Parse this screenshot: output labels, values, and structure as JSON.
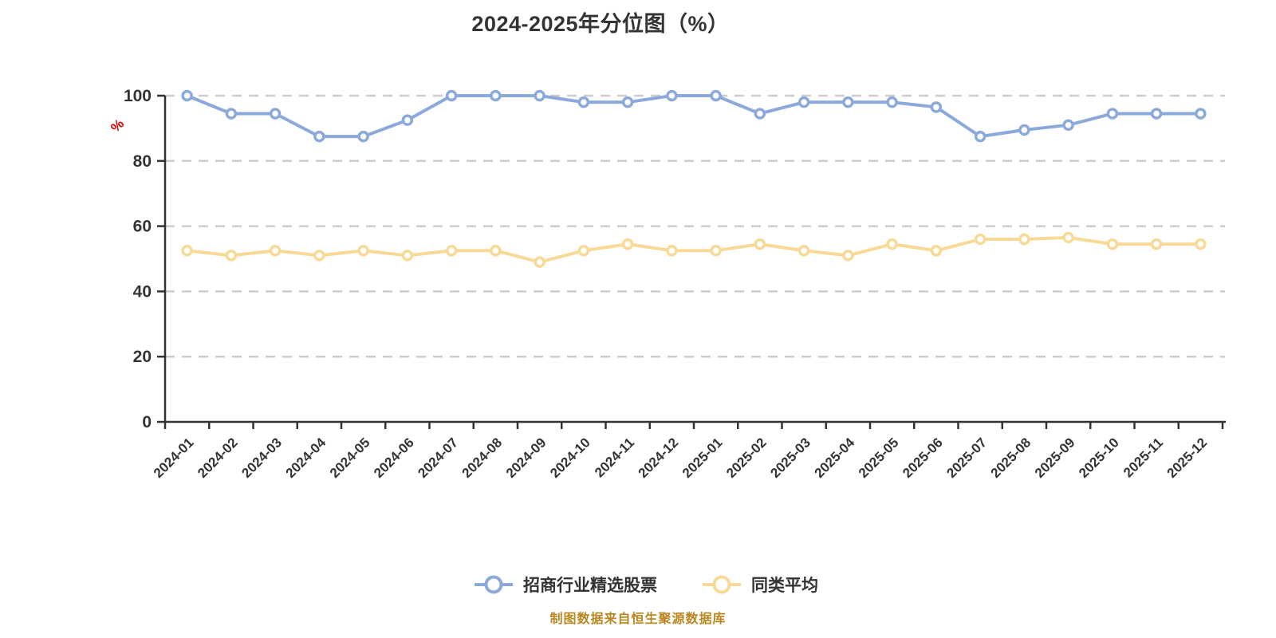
{
  "title": "2024-2025年分位图（%）",
  "caption": "制图数据来自恒生聚源数据库",
  "y_axis": {
    "unit": "%",
    "ticks": [
      0,
      20,
      40,
      60,
      80,
      100
    ]
  },
  "legend": [
    {
      "label": "招商行业精选股票",
      "color": "#8CA9DB"
    },
    {
      "label": "同类平均",
      "color": "#F8DA96"
    }
  ],
  "colors": {
    "axis": "#333333",
    "tick_label": "#333333",
    "grid": "#cccccc",
    "unit_label_red": "#dd0000",
    "caption_orange": "#b9861f",
    "series_fund": "#8CA9DB",
    "series_average": "#F8DA96",
    "marker_fill": "#ffffff",
    "background": "#ffffff"
  },
  "chart_data": {
    "type": "line",
    "title": "2024-2025年分位图（%）",
    "xlabel": "",
    "ylabel": "%",
    "ylim": [
      0,
      100
    ],
    "yticks": [
      0,
      20,
      40,
      60,
      80,
      100
    ],
    "grid": "horizontal-dashed",
    "legend_position": "bottom",
    "categories": [
      "2024-01",
      "2024-02",
      "2024-03",
      "2024-04",
      "2024-05",
      "2024-06",
      "2024-07",
      "2024-08",
      "2024-09",
      "2024-10",
      "2024-11",
      "2024-12",
      "2025-01",
      "2025-02",
      "2025-03",
      "2025-04",
      "2025-05",
      "2025-06",
      "2025-07",
      "2025-08",
      "2025-09",
      "2025-10",
      "2025-11",
      "2025-12"
    ],
    "series": [
      {
        "name": "招商行业精选股票",
        "color": "#8CA9DB",
        "values": [
          100,
          94.5,
          94.5,
          87.5,
          87.5,
          92.5,
          100,
          100,
          100,
          98,
          98,
          100,
          100,
          94.5,
          98,
          98,
          98,
          96.5,
          87.5,
          89.5,
          91,
          94.5,
          94.5,
          94.5
        ]
      },
      {
        "name": "同类平均",
        "color": "#F8DA96",
        "values": [
          52.5,
          51,
          52.5,
          51,
          52.5,
          51,
          52.5,
          52.5,
          49,
          52.5,
          54.5,
          52.5,
          52.5,
          54.5,
          52.5,
          51,
          54.5,
          52.5,
          56,
          56,
          56.5,
          54.5,
          54.5,
          54.5
        ]
      }
    ]
  }
}
